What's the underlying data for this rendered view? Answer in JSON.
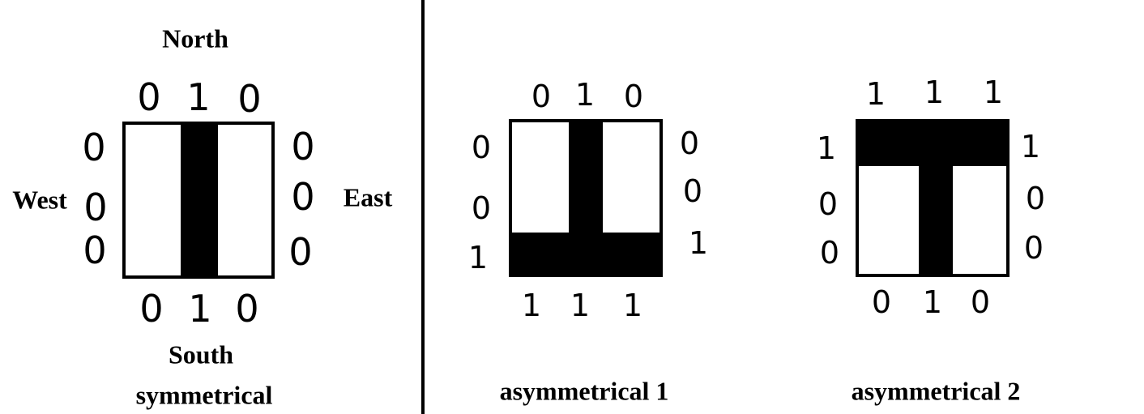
{
  "colors": {
    "ink": "#000000",
    "paper": "#ffffff"
  },
  "panels": [
    {
      "name": "symmetrical",
      "caption": "symmetrical",
      "direction_labels": {
        "north": "North",
        "south": "South",
        "west": "West",
        "east": "East"
      },
      "shape": "vertical-bar",
      "edges": {
        "north": [
          "0",
          "1",
          "0"
        ],
        "east": [
          "0",
          "0",
          "0"
        ],
        "south": [
          "0",
          "1",
          "0"
        ],
        "west": [
          "0",
          "0",
          "0"
        ]
      }
    },
    {
      "name": "asymmetrical-1",
      "caption": "asymmetrical 1",
      "shape": "inverted-t",
      "edges": {
        "north": [
          "0",
          "1",
          "0"
        ],
        "east": [
          "0",
          "0",
          "1"
        ],
        "south": [
          "1",
          "1",
          "1"
        ],
        "west": [
          "0",
          "0",
          "1"
        ]
      }
    },
    {
      "name": "asymmetrical-2",
      "caption": "asymmetrical 2",
      "shape": "t",
      "edges": {
        "north": [
          "1",
          "1",
          "1"
        ],
        "east": [
          "1",
          "0",
          "0"
        ],
        "south": [
          "0",
          "1",
          "0"
        ],
        "west": [
          "1",
          "0",
          "0"
        ]
      }
    }
  ]
}
